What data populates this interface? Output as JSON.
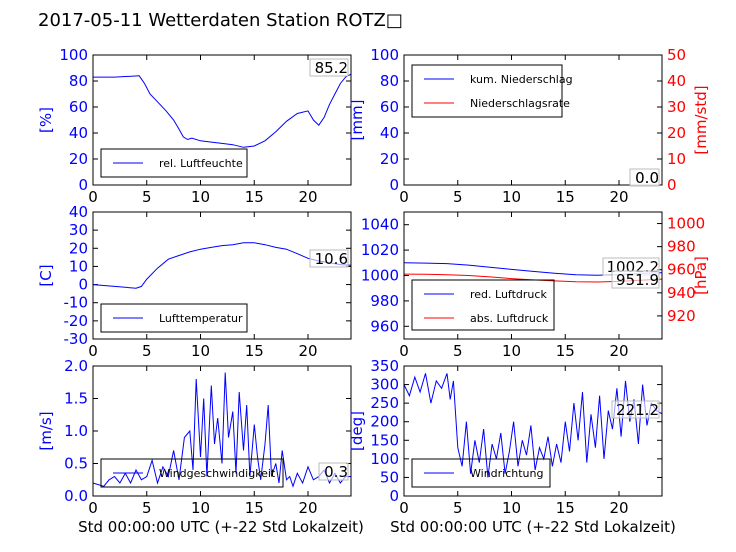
{
  "figure_title": "2017-05-11 Wetterdaten Station ROTZ□",
  "x_axis_label": "Std 00:00:00 UTC (+-22 Std Lokalzeit)",
  "colors": {
    "primary": "#0000ff",
    "secondary": "#ff0000",
    "text": "#000000"
  },
  "chart_data": [
    {
      "id": "humidity",
      "type": "line",
      "xlim": [
        0,
        24
      ],
      "xticks": [
        0,
        5,
        10,
        15,
        20
      ],
      "ylim": [
        0,
        100
      ],
      "yticks": [
        0,
        20,
        40,
        60,
        80,
        100
      ],
      "ylabel": "[%]",
      "series": [
        {
          "name": "rel. Luftfeuchte",
          "color": "#0000ff",
          "axis": "left",
          "x": [
            0,
            2,
            4.3,
            4.8,
            5.3,
            6,
            6.8,
            7.5,
            8,
            8.4,
            8.8,
            9.2,
            10,
            11,
            12,
            13,
            14,
            15,
            16,
            17,
            18,
            19,
            20,
            20.5,
            21,
            21.5,
            22,
            22.5,
            23,
            23.5,
            24
          ],
          "y": [
            83,
            83,
            84,
            78,
            70,
            64,
            57,
            50,
            43,
            37,
            35,
            36,
            34,
            33,
            32,
            31,
            29,
            30,
            34,
            41,
            49,
            55,
            57,
            50,
            46,
            52,
            62,
            70,
            78,
            83,
            85.2
          ]
        }
      ],
      "legend": {
        "position": "lower-left"
      },
      "value_label": "85.2"
    },
    {
      "id": "precipitation",
      "type": "line",
      "xlim": [
        0,
        24
      ],
      "xticks": [
        0,
        5,
        10,
        15,
        20
      ],
      "ylim": [
        0,
        100
      ],
      "yticks": [
        0,
        20,
        40,
        60,
        80,
        100
      ],
      "ylabel": "[mm]",
      "ylim_right": [
        0,
        50
      ],
      "yticks_right": [
        0,
        10,
        20,
        30,
        40,
        50
      ],
      "ylabel_right": "[mm/std]",
      "series": [
        {
          "name": "kum. Niederschlag",
          "color": "#0000ff",
          "axis": "left",
          "x": [
            0,
            24
          ],
          "y": [
            0,
            0
          ]
        },
        {
          "name": "Niederschlagsrate",
          "color": "#ff0000",
          "axis": "right",
          "x": [
            0,
            24
          ],
          "y": [
            0,
            0
          ]
        }
      ],
      "legend": {
        "position": "top-left"
      },
      "value_labels": [
        "0.0",
        "0.0"
      ]
    },
    {
      "id": "temperature",
      "type": "line",
      "xlim": [
        0,
        24
      ],
      "xticks": [
        0,
        5,
        10,
        15,
        20
      ],
      "ylim": [
        -30,
        40
      ],
      "yticks": [
        -30,
        -20,
        -10,
        0,
        10,
        20,
        30,
        40
      ],
      "ylabel": "[C]",
      "series": [
        {
          "name": "Lufttemperatur",
          "color": "#0000ff",
          "axis": "left",
          "x": [
            0,
            1,
            2,
            3,
            4,
            4.5,
            5,
            6,
            7,
            8,
            9,
            10,
            11,
            12,
            13,
            14,
            15,
            16,
            17,
            18,
            19,
            20,
            21,
            22,
            23,
            24
          ],
          "y": [
            0,
            -0.5,
            -1,
            -1.5,
            -2,
            -1,
            3,
            9,
            14,
            16,
            18,
            19.5,
            20.5,
            21.5,
            22,
            23,
            23,
            22,
            20.5,
            19.5,
            17,
            14.5,
            13,
            12,
            11,
            10.6
          ]
        }
      ],
      "legend": {
        "position": "lower-left"
      },
      "value_label": "10.6"
    },
    {
      "id": "pressure",
      "type": "line",
      "xlim": [
        0,
        24
      ],
      "xticks": [
        0,
        5,
        10,
        15,
        20
      ],
      "ylim": [
        950,
        1050
      ],
      "yticks": [
        960,
        980,
        1000,
        1020,
        1040
      ],
      "ylim_right": [
        900,
        1010
      ],
      "yticks_right": [
        920,
        940,
        960,
        980,
        1000
      ],
      "ylabel_right": "[hPa]",
      "series": [
        {
          "name": "red. Luftdruck",
          "color": "#0000ff",
          "axis": "left",
          "x": [
            0,
            2,
            4,
            6,
            8,
            10,
            12,
            14,
            16,
            18,
            20,
            22,
            24
          ],
          "y": [
            1010,
            1009.8,
            1009.4,
            1008.2,
            1006.5,
            1004.8,
            1003.2,
            1001.8,
            1000.6,
            1000.2,
            1000.8,
            1001.8,
            1002.2
          ]
        },
        {
          "name": "abs. Luftdruck",
          "color": "#ff0000",
          "axis": "right",
          "x": [
            0,
            2,
            4,
            6,
            8,
            10,
            12,
            14,
            16,
            18,
            20,
            22,
            24
          ],
          "y": [
            956.2,
            956,
            955.7,
            955,
            953.8,
            952.3,
            951.2,
            950.3,
            949.6,
            949.4,
            949.9,
            950.9,
            951.9
          ]
        }
      ],
      "legend": {
        "position": "lower-left"
      },
      "value_labels": [
        "1002.2",
        "951.9"
      ]
    },
    {
      "id": "wind_speed",
      "type": "line",
      "xlim": [
        0,
        24
      ],
      "xticks": [
        0,
        5,
        10,
        15,
        20
      ],
      "ylim": [
        0,
        2.0
      ],
      "yticks": [
        0.0,
        0.5,
        1.0,
        1.5,
        2.0
      ],
      "ylabel": "[m/s]",
      "series": [
        {
          "name": "Windgeschwindigkeit",
          "color": "#0000ff",
          "axis": "left",
          "x": [
            0,
            1,
            1.5,
            2,
            2.5,
            3,
            3.5,
            4,
            4.5,
            5,
            5.5,
            6,
            6.5,
            7,
            7.5,
            8,
            8.5,
            9,
            9.3,
            9.6,
            10,
            10.3,
            10.6,
            11,
            11.3,
            11.6,
            12,
            12.3,
            12.6,
            13,
            13.3,
            13.6,
            14,
            14.3,
            14.6,
            15,
            15.3,
            15.6,
            16,
            16.3,
            16.6,
            17,
            17.3,
            17.6,
            18,
            18.3,
            18.6,
            19,
            19.5,
            20,
            20.5,
            21,
            21.5,
            22,
            22.5,
            23,
            23.5,
            24
          ],
          "y": [
            0.2,
            0.15,
            0.25,
            0.3,
            0.2,
            0.35,
            0.2,
            0.4,
            0.25,
            0.3,
            0.55,
            0.2,
            0.45,
            0.3,
            0.7,
            0.25,
            0.9,
            1.0,
            0.4,
            1.8,
            0.6,
            1.5,
            0.3,
            1.7,
            0.8,
            1.2,
            0.5,
            1.9,
            0.9,
            1.3,
            0.35,
            1.6,
            0.7,
            1.4,
            0.3,
            1.1,
            0.6,
            0.25,
            0.8,
            1.4,
            0.3,
            0.5,
            0.2,
            0.7,
            0.25,
            0.3,
            0.15,
            0.35,
            0.2,
            0.45,
            0.25,
            0.3,
            0.4,
            0.2,
            0.35,
            0.2,
            0.3,
            0.3
          ]
        }
      ],
      "legend": {
        "position": "lower-left"
      },
      "value_label": "0.3"
    },
    {
      "id": "wind_direction",
      "type": "line",
      "xlim": [
        0,
        24
      ],
      "xticks": [
        0,
        5,
        10,
        15,
        20
      ],
      "ylim": [
        0,
        350
      ],
      "yticks": [
        0,
        50,
        100,
        150,
        200,
        250,
        300,
        350
      ],
      "ylabel": "[deg]",
      "series": [
        {
          "name": "Windrichtung",
          "color": "#0000ff",
          "axis": "left",
          "x": [
            0,
            0.5,
            1,
            1.5,
            2,
            2.5,
            3,
            3.5,
            4,
            4.3,
            4.6,
            5,
            5.4,
            5.8,
            6.2,
            6.6,
            7,
            7.4,
            7.8,
            8.2,
            8.6,
            9,
            9.4,
            9.8,
            10.2,
            10.6,
            11,
            11.4,
            11.8,
            12.2,
            12.6,
            13,
            13.4,
            13.8,
            14.2,
            14.6,
            15,
            15.4,
            15.8,
            16.2,
            16.6,
            17,
            17.4,
            17.8,
            18.2,
            18.6,
            19,
            19.4,
            19.8,
            20.2,
            20.6,
            21,
            21.4,
            21.8,
            22.2,
            22.6,
            23,
            23.5,
            24
          ],
          "y": [
            300,
            270,
            320,
            280,
            330,
            250,
            310,
            290,
            330,
            260,
            310,
            130,
            80,
            200,
            60,
            150,
            90,
            180,
            50,
            140,
            100,
            170,
            60,
            120,
            200,
            80,
            150,
            110,
            190,
            70,
            130,
            100,
            160,
            80,
            140,
            90,
            200,
            120,
            250,
            150,
            280,
            90,
            220,
            130,
            270,
            100,
            230,
            180,
            290,
            160,
            310,
            200,
            260,
            140,
            300,
            190,
            250,
            230,
            221.2
          ]
        }
      ],
      "legend": {
        "position": "lower-left"
      },
      "value_label": "221.2"
    }
  ]
}
